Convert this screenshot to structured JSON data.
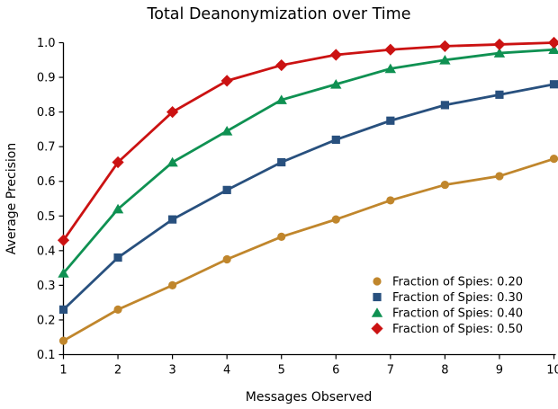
{
  "chart_data": {
    "type": "line",
    "title": "Total Deanonymization over Time",
    "xlabel": "Messages Observed",
    "ylabel": "Average Precision",
    "x": [
      1,
      2,
      3,
      4,
      5,
      6,
      7,
      8,
      9,
      10
    ],
    "xlim": [
      1,
      10
    ],
    "ylim": [
      0.1,
      1.0
    ],
    "xticks": [
      1,
      2,
      3,
      4,
      5,
      6,
      7,
      8,
      9,
      10
    ],
    "yticks": [
      0.1,
      0.2,
      0.3,
      0.4,
      0.5,
      0.6,
      0.7,
      0.8,
      0.9,
      1.0
    ],
    "grid": false,
    "legend_position": "inside-lower-right",
    "axis_color": "#000000",
    "background_color": "#ffffff",
    "series": [
      {
        "name": "Fraction of Spies: 0.20",
        "marker": "circle",
        "color": "#C0862C",
        "values": [
          0.14,
          0.23,
          0.3,
          0.375,
          0.44,
          0.49,
          0.545,
          0.59,
          0.615,
          0.665
        ]
      },
      {
        "name": "Fraction of Spies: 0.30",
        "marker": "square",
        "color": "#28507E",
        "values": [
          0.23,
          0.38,
          0.49,
          0.575,
          0.655,
          0.72,
          0.775,
          0.82,
          0.85,
          0.88
        ]
      },
      {
        "name": "Fraction of Spies: 0.40",
        "marker": "triangle",
        "color": "#0F9152",
        "values": [
          0.335,
          0.52,
          0.655,
          0.745,
          0.835,
          0.88,
          0.925,
          0.95,
          0.97,
          0.98
        ]
      },
      {
        "name": "Fraction of Spies: 0.50",
        "marker": "diamond",
        "color": "#CB1212",
        "values": [
          0.43,
          0.655,
          0.8,
          0.89,
          0.935,
          0.965,
          0.98,
          0.99,
          0.995,
          1.0
        ]
      }
    ]
  }
}
